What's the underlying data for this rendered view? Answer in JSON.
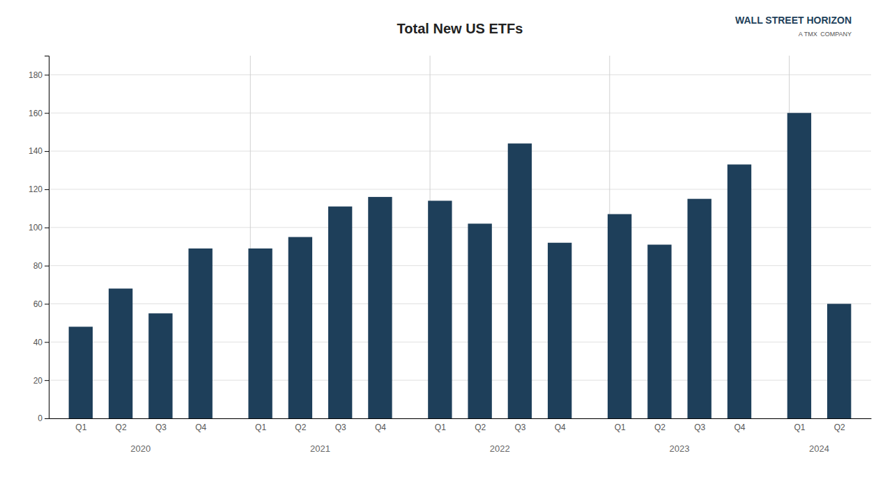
{
  "chart_data": {
    "type": "bar",
    "title": "Total New US ETFs",
    "categories": [
      "Q1",
      "Q2",
      "Q3",
      "Q4",
      "Q1",
      "Q2",
      "Q3",
      "Q4",
      "Q1",
      "Q2",
      "Q3",
      "Q4",
      "Q1",
      "Q2",
      "Q3",
      "Q4",
      "Q1",
      "Q2"
    ],
    "values": [
      48,
      68,
      55,
      89,
      89,
      95,
      111,
      116,
      114,
      102,
      144,
      92,
      107,
      91,
      115,
      133,
      160,
      60
    ],
    "color": "#1e3f5a",
    "groups": [
      {
        "label": "2020",
        "start": 0,
        "end": 3
      },
      {
        "label": "2021",
        "start": 4,
        "end": 7
      },
      {
        "label": "2022",
        "start": 8,
        "end": 11
      },
      {
        "label": "2023",
        "start": 12,
        "end": 15
      },
      {
        "label": "2024",
        "start": 16,
        "end": 17
      }
    ],
    "ylim": [
      0,
      190
    ],
    "yticks": [
      0,
      20,
      40,
      60,
      80,
      100,
      120,
      140,
      160,
      180
    ],
    "grid": true,
    "annotations": [
      "WALL STREET HORIZON",
      "A TMX COMPANY"
    ]
  }
}
